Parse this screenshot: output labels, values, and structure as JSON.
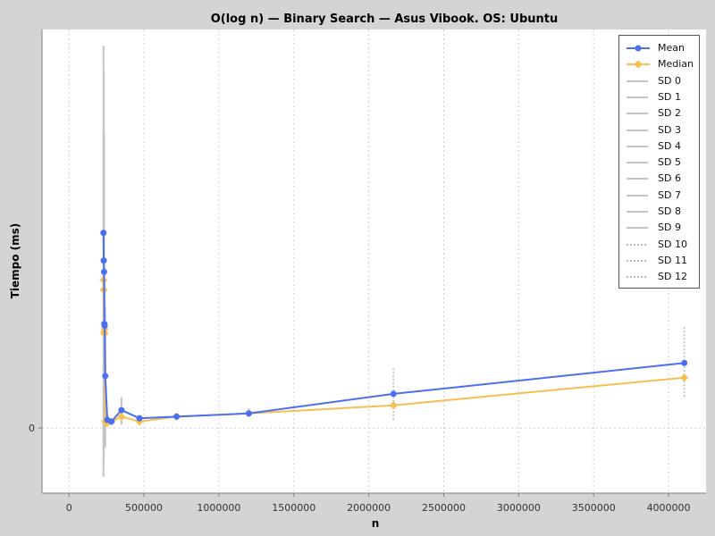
{
  "chart_data": {
    "type": "line",
    "title": "O(log n) — Binary Search — Asus Vibook. OS: Ubuntu",
    "xlabel": "n",
    "ylabel": "Tiempo (ms)",
    "xlim": [
      -180000,
      4250000
    ],
    "ylim": [
      -0.4,
      2.45
    ],
    "x_ticks": [
      0,
      500000,
      1000000,
      1500000,
      2000000,
      2500000,
      3000000,
      3500000,
      4000000
    ],
    "x_tick_labels": [
      "0",
      "500000",
      "1000000",
      "1500000",
      "2000000",
      "2500000",
      "3000000",
      "3500000",
      "4000000"
    ],
    "y_ticks": [
      0
    ],
    "y_tick_labels": [
      "0"
    ],
    "grid": true,
    "legend_position": "top-right",
    "series": [
      {
        "name": "Mean",
        "color": "#4a6ff0",
        "marker": "circle",
        "x": [
          230000,
          232000,
          234000,
          236000,
          238000,
          242000,
          256000,
          283000,
          350000,
          470000,
          718000,
          1200000,
          2165000,
          4105000
        ],
        "y": [
          1.2,
          1.03,
          0.96,
          0.64,
          0.63,
          0.32,
          0.05,
          0.04,
          0.11,
          0.06,
          0.07,
          0.09,
          0.21,
          0.4
        ]
      },
      {
        "name": "Median",
        "color": "#f5c050",
        "marker": "diamond",
        "x": [
          230000,
          232000,
          234000,
          236000,
          238000,
          242000,
          256000,
          283000,
          350000,
          470000,
          718000,
          1200000,
          2165000,
          4105000
        ],
        "y": [
          0.91,
          0.85,
          0.59,
          0.58,
          0.61,
          0.04,
          0.03,
          0.04,
          0.07,
          0.04,
          0.07,
          0.09,
          0.14,
          0.31
        ]
      }
    ],
    "sd_series": [
      {
        "name": "SD 0",
        "style": "solid",
        "x": 230000,
        "low": -0.3,
        "high": 2.35
      },
      {
        "name": "SD 1",
        "style": "solid",
        "x": 232000,
        "low": -0.2,
        "high": 2.2
      },
      {
        "name": "SD 2",
        "style": "solid",
        "x": 234000,
        "low": 0.1,
        "high": 1.82
      },
      {
        "name": "SD 3",
        "style": "solid",
        "x": 236000,
        "low": 0.35,
        "high": 0.93
      },
      {
        "name": "SD 4",
        "style": "solid",
        "x": 238000,
        "low": 0.35,
        "high": 0.91
      },
      {
        "name": "SD 5",
        "style": "solid",
        "x": 242000,
        "low": -0.12,
        "high": 0.75
      },
      {
        "name": "SD 6",
        "style": "solid",
        "x": 256000,
        "low": 0.02,
        "high": 0.08
      },
      {
        "name": "SD 7",
        "style": "solid",
        "x": 283000,
        "low": 0.02,
        "high": 0.06
      },
      {
        "name": "SD 8",
        "style": "solid",
        "x": 350000,
        "low": 0.02,
        "high": 0.19
      },
      {
        "name": "SD 9",
        "style": "solid",
        "x": 470000,
        "low": 0.03,
        "high": 0.08
      },
      {
        "name": "SD 10",
        "style": "dotted",
        "x": 718000,
        "low": 0.05,
        "high": 0.09
      },
      {
        "name": "SD 11",
        "style": "dotted",
        "x": 1200000,
        "low": 0.07,
        "high": 0.12
      },
      {
        "name": "SD 12",
        "style": "dotted",
        "x": 2165000,
        "low": 0.04,
        "high": 0.37
      },
      {
        "name": "SD 12",
        "style": "dotted",
        "x": 4105000,
        "low": 0.19,
        "high": 0.62
      }
    ],
    "legend": [
      {
        "label": "Mean",
        "kind": "mean"
      },
      {
        "label": "Median",
        "kind": "median"
      },
      {
        "label": "SD 0",
        "kind": "solid"
      },
      {
        "label": "SD 1",
        "kind": "solid"
      },
      {
        "label": "SD 2",
        "kind": "solid"
      },
      {
        "label": "SD 3",
        "kind": "solid"
      },
      {
        "label": "SD 4",
        "kind": "solid"
      },
      {
        "label": "SD 5",
        "kind": "solid"
      },
      {
        "label": "SD 6",
        "kind": "solid"
      },
      {
        "label": "SD 7",
        "kind": "solid"
      },
      {
        "label": "SD 8",
        "kind": "solid"
      },
      {
        "label": "SD 9",
        "kind": "solid"
      },
      {
        "label": "SD 10",
        "kind": "dotted"
      },
      {
        "label": "SD 11",
        "kind": "dotted"
      },
      {
        "label": "SD 12",
        "kind": "dotted"
      }
    ]
  }
}
